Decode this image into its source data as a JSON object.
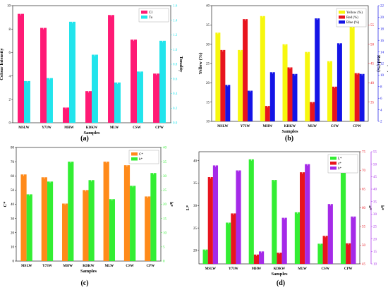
{
  "panel_labels": [
    "(a)",
    "(b)",
    "(c)",
    "(d)"
  ],
  "colors": {
    "magenta": "#ff1a75",
    "cyan": "#22e4ec",
    "yellow": "#f7f70e",
    "red": "#e8141e",
    "blue": "#1414e6",
    "orange": "#ff8a1a",
    "green": "#33ee33",
    "purple": "#a52ae8",
    "errorbar": "#ffffff"
  },
  "chart_data": [
    {
      "type": "bar",
      "panel": "(a)",
      "categories": [
        "MSLW",
        "Y73W",
        "MHW",
        "KDKW",
        "MLW",
        "CSW",
        "CPW"
      ],
      "xlabel": "Samples",
      "ylabel": "Colour Intensity",
      "y2label": "Tonality",
      "ylim": [
        0,
        10
      ],
      "y2lim": [
        0,
        1.6
      ],
      "yticks": [
        "0",
        "2",
        "4",
        "6",
        "8",
        "10"
      ],
      "y2ticks": [
        "0.0",
        "0.2",
        "0.4",
        "0.6",
        "0.8",
        "1.0",
        "1.2",
        "1.4",
        "1.6"
      ],
      "legend_position": "top-right",
      "series": [
        {
          "name": "CI",
          "axis": "left",
          "color": "#ff1a75",
          "values": [
            9.3,
            8.1,
            1.3,
            2.7,
            9.2,
            7.1,
            4.2
          ]
        },
        {
          "name": "To",
          "axis": "right",
          "color": "#22e4ec",
          "values": [
            0.57,
            0.61,
            1.38,
            0.93,
            0.55,
            0.7,
            1.12
          ]
        }
      ]
    },
    {
      "type": "bar",
      "panel": "(b)",
      "categories": [
        "MSLW",
        "Y73W",
        "MHW",
        "KDKW",
        "MLW",
        "CSW",
        "CPW"
      ],
      "xlabel": "Samples",
      "ylabel": "Yellow (%)",
      "y2label": "Red (%)",
      "y3label": "Blue (%)",
      "ylim": [
        10,
        40
      ],
      "y2lim": [
        30,
        60
      ],
      "y3lim": [
        2,
        22
      ],
      "yticks": [
        "10",
        "15",
        "20",
        "25",
        "30",
        "35",
        "40"
      ],
      "y2ticks": [
        "35",
        "40",
        "45",
        "50",
        "55"
      ],
      "y3ticks": [
        "2",
        "4",
        "6",
        "8",
        "10",
        "12",
        "14",
        "16",
        "18",
        "20",
        "22"
      ],
      "legend_position": "top-right",
      "series": [
        {
          "name": "Yellow (%)",
          "axis": "left",
          "color": "#f7f70e",
          "values": [
            33.0,
            28.5,
            37.3,
            30.0,
            28.0,
            25.6,
            34.5
          ]
        },
        {
          "name": "Red (%)",
          "axis": "right",
          "color": "#e8141e",
          "values": [
            48.5,
            56.5,
            34.0,
            44.0,
            35.0,
            39.0,
            42.5
          ]
        },
        {
          "name": "Blue (%)",
          "axis": "right2",
          "color": "#1414e6",
          "values": [
            8.3,
            7.3,
            10.5,
            10.2,
            19.8,
            15.5,
            10.2
          ]
        }
      ]
    },
    {
      "type": "bar",
      "panel": "(c)",
      "categories": [
        "MSLW",
        "Y73W",
        "MHW",
        "KDKW",
        "MLW",
        "CSW",
        "CPW"
      ],
      "xlabel": "Samples",
      "ylabel": "C*",
      "y2label": "h*",
      "ylim": [
        0,
        80
      ],
      "y2lim": [
        0,
        40
      ],
      "yticks": [
        "0",
        "10",
        "20",
        "30",
        "40",
        "50",
        "60",
        "70",
        "80"
      ],
      "y2ticks": [
        "0",
        "5",
        "10",
        "15",
        "20",
        "25",
        "30",
        "35",
        "40"
      ],
      "legend_position": "top-right",
      "series": [
        {
          "name": "C*",
          "axis": "left",
          "color": "#ff8a1a",
          "values": [
            61,
            59,
            40.5,
            50,
            70,
            67.5,
            45.5
          ]
        },
        {
          "name": "h*",
          "axis": "right",
          "color": "#33ee33",
          "values": [
            23.5,
            28,
            35,
            28.5,
            21.8,
            26.5,
            31
          ]
        }
      ]
    },
    {
      "type": "bar",
      "panel": "(d)",
      "categories": [
        "MSLW",
        "Y73W",
        "MHW",
        "KDKW",
        "MLW",
        "CSW",
        "CPW"
      ],
      "xlabel": "Samples",
      "ylabel": "L*",
      "y2label": "a*",
      "y3label": "b*",
      "ylim": [
        17,
        42
      ],
      "y2lim": [
        45,
        75
      ],
      "y3lim": [
        10,
        55
      ],
      "yticks": [
        "20",
        "25",
        "30",
        "35",
        "40"
      ],
      "y2ticks": [
        "45",
        "50",
        "55",
        "60",
        "65",
        "70",
        "75"
      ],
      "y3ticks": [
        "10",
        "15",
        "20",
        "25",
        "30",
        "35",
        "40",
        "45",
        "50",
        "55"
      ],
      "legend_position": "top-right",
      "series": [
        {
          "name": "L*",
          "axis": "left",
          "color": "#33ee33",
          "values": [
            20.2,
            26.2,
            40.3,
            35.7,
            28.5,
            21.5,
            38.2
          ]
        },
        {
          "name": "a*",
          "axis": "right",
          "color": "#e8141e",
          "values": [
            68.2,
            58.5,
            47.5,
            48,
            69.5,
            52.5,
            50.5
          ]
        },
        {
          "name": "b*",
          "axis": "right2",
          "color": "#a52ae8",
          "values": [
            49.5,
            47.5,
            15,
            28.5,
            50,
            34,
            29
          ]
        }
      ]
    }
  ]
}
